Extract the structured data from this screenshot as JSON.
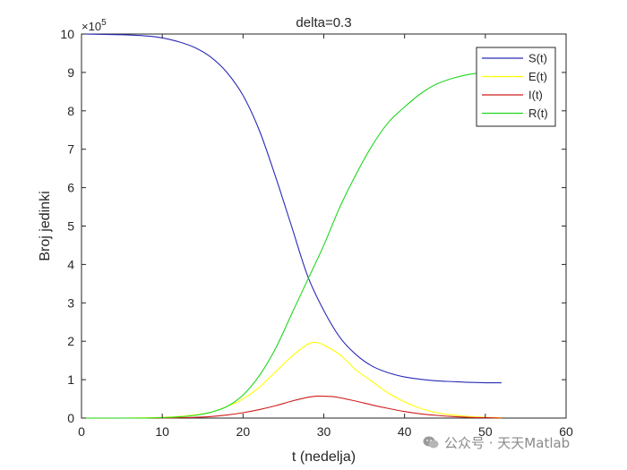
{
  "chart_data": {
    "type": "line",
    "title": "delta=0.3",
    "xlabel": "t (nedelja)",
    "ylabel": "Broj jedinki",
    "xlim": [
      0,
      60
    ],
    "ylim": [
      0,
      10
    ],
    "y_multiplier_label": "×10^5",
    "xticks": [
      0,
      10,
      20,
      30,
      40,
      50,
      60
    ],
    "yticks": [
      0,
      1,
      2,
      3,
      4,
      5,
      6,
      7,
      8,
      9,
      10
    ],
    "grid": false,
    "legend_position": "top-right",
    "series": [
      {
        "name": "S(t)",
        "color": "#2a2ab8",
        "x": [
          0,
          5,
          8,
          10,
          12,
          14,
          16,
          18,
          20,
          22,
          24,
          26,
          28,
          30,
          32,
          34,
          36,
          38,
          40,
          42,
          44,
          46,
          48,
          50,
          52
        ],
        "y": [
          10.0,
          9.98,
          9.95,
          9.9,
          9.8,
          9.65,
          9.4,
          9.0,
          8.4,
          7.5,
          6.3,
          5.0,
          3.7,
          2.8,
          2.1,
          1.65,
          1.35,
          1.18,
          1.07,
          1.01,
          0.97,
          0.95,
          0.93,
          0.92,
          0.92
        ]
      },
      {
        "name": "E(t)",
        "color": "#ffff00",
        "x": [
          0,
          5,
          8,
          10,
          12,
          14,
          16,
          18,
          20,
          22,
          24,
          26,
          28,
          29,
          30,
          32,
          34,
          36,
          38,
          40,
          42,
          44,
          46,
          48,
          50,
          52
        ],
        "y": [
          0.0,
          0.0,
          0.01,
          0.02,
          0.04,
          0.08,
          0.15,
          0.3,
          0.5,
          0.8,
          1.2,
          1.6,
          1.92,
          1.97,
          1.9,
          1.65,
          1.25,
          0.95,
          0.65,
          0.42,
          0.25,
          0.14,
          0.08,
          0.04,
          0.02,
          0.01
        ]
      },
      {
        "name": "I(t)",
        "color": "#d01c1c",
        "x": [
          0,
          5,
          8,
          10,
          12,
          14,
          16,
          18,
          20,
          22,
          24,
          26,
          28,
          29,
          30,
          31,
          32,
          34,
          36,
          38,
          40,
          42,
          44,
          46,
          48,
          50,
          52
        ],
        "y": [
          0.0,
          0.0,
          0.0,
          0.0,
          0.01,
          0.02,
          0.04,
          0.08,
          0.14,
          0.22,
          0.32,
          0.44,
          0.54,
          0.57,
          0.57,
          0.56,
          0.53,
          0.44,
          0.34,
          0.25,
          0.17,
          0.11,
          0.07,
          0.04,
          0.02,
          0.01,
          0.0
        ]
      },
      {
        "name": "R(t)",
        "color": "#1fd61f",
        "x": [
          0,
          5,
          8,
          10,
          12,
          14,
          16,
          18,
          20,
          22,
          24,
          26,
          28,
          30,
          32,
          34,
          36,
          38,
          40,
          42,
          44,
          46,
          48,
          50,
          52
        ],
        "y": [
          0.0,
          0.0,
          0.0,
          0.01,
          0.03,
          0.07,
          0.15,
          0.3,
          0.6,
          1.1,
          1.8,
          2.7,
          3.6,
          4.5,
          5.5,
          6.35,
          7.1,
          7.7,
          8.1,
          8.45,
          8.7,
          8.85,
          8.95,
          9.0,
          9.03
        ]
      }
    ]
  },
  "watermark": {
    "text": "公众号 · 天天Matlab",
    "icon": "wechat-icon"
  }
}
